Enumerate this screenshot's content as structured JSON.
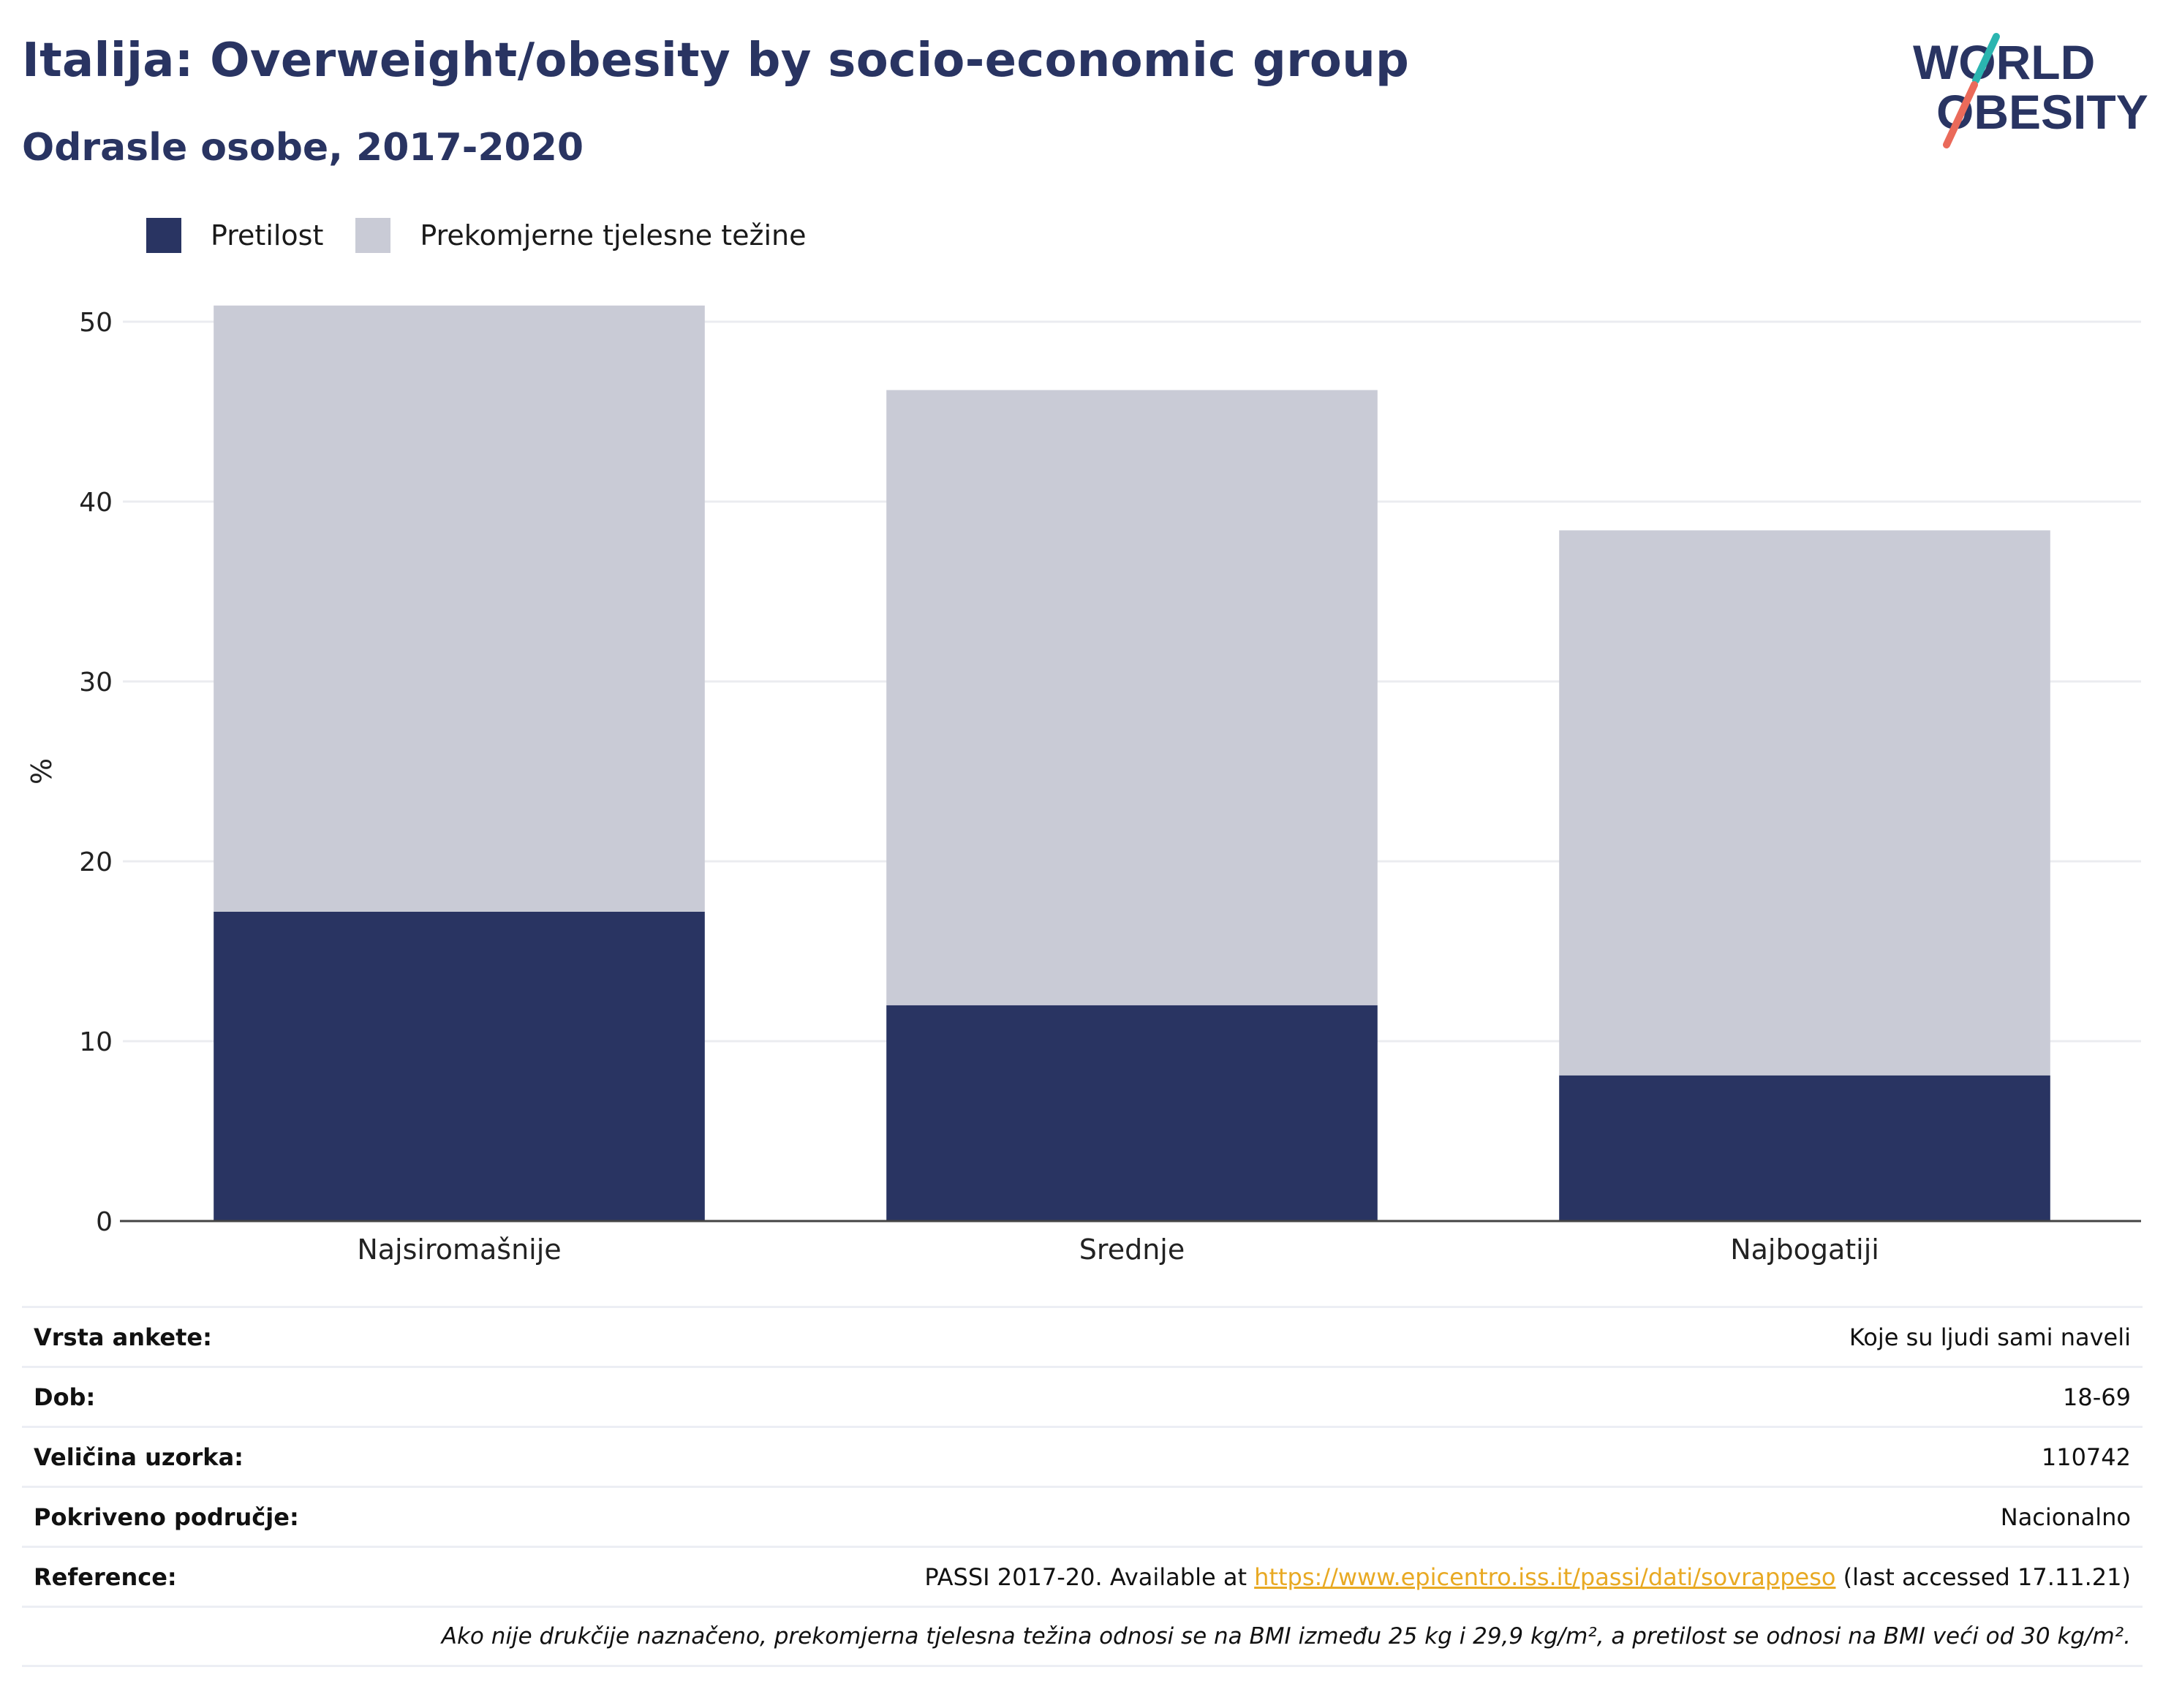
{
  "title": "Italija: Overweight/obesity by socio-economic group",
  "subtitle": "Odrasle osobe, 2017-2020",
  "logo": {
    "line1": "WORLD",
    "line2": "OBESITY",
    "colors": [
      "#293462",
      "#2bb5b0",
      "#ea6a5a"
    ]
  },
  "legend": [
    {
      "label": "Pretilost",
      "color": "#293462"
    },
    {
      "label": "Prekomjerne tjelesne težine",
      "color": "#c9cbd6"
    }
  ],
  "chart_data": {
    "type": "bar",
    "stacked": true,
    "categories": [
      "Najsiromašnije",
      "Srednje",
      "Najbogatiji"
    ],
    "series": [
      {
        "name": "Pretilost",
        "values": [
          17.2,
          12.0,
          8.1
        ],
        "color": "#293462"
      },
      {
        "name": "Prekomjerne tjelesne težine",
        "values": [
          33.7,
          34.2,
          30.3
        ],
        "color": "#c9cbd6"
      }
    ],
    "ylabel": "%",
    "xlabel": "",
    "ylim": [
      0,
      50
    ],
    "yticks": [
      0,
      10,
      20,
      30,
      40,
      50
    ],
    "grid": true,
    "legend_position": "top-left"
  },
  "info": {
    "rows": [
      {
        "label": "Vrsta ankete:",
        "value": "Koje su ljudi sami naveli"
      },
      {
        "label": "Dob:",
        "value": "18-69"
      },
      {
        "label": "Veličina uzorka:",
        "value": "110742"
      },
      {
        "label": "Pokriveno područje:",
        "value": "Nacionalno"
      }
    ],
    "reference": {
      "label": "Reference:",
      "prefix": "PASSI 2017-20. Available at ",
      "link": "https://www.epicentro.iss.it/passi/dati/sovrappeso",
      "suffix": " (last accessed 17.11.21)"
    },
    "note": "Ako nije drukčije naznačeno, prekomjerna tjelesna težina odnosi se na BMI između 25 kg i 29,9 kg/m², a pretilost se odnosi na BMI veći od 30 kg/m²."
  }
}
